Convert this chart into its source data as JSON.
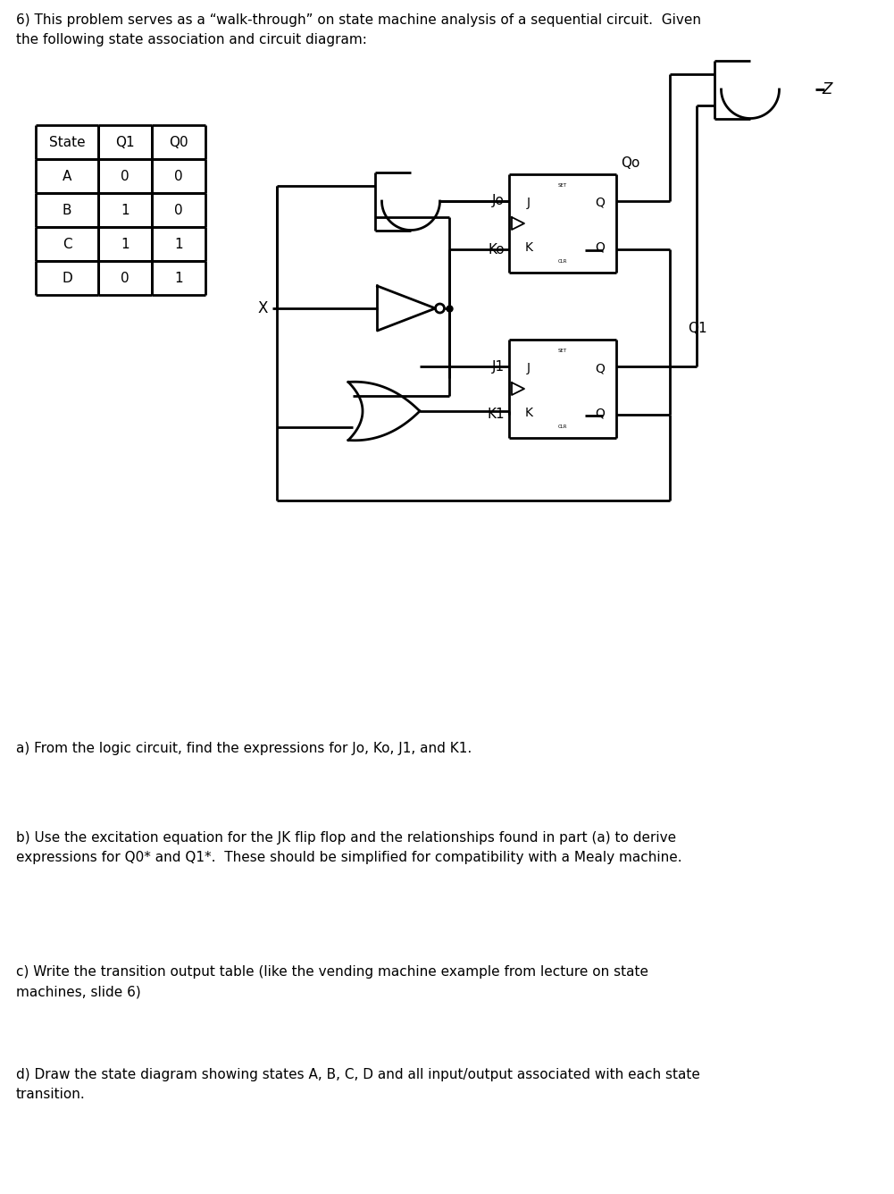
{
  "title_text": "6) This problem serves as a “walk-through” on state machine analysis of a sequential circuit.  Given\nthe following state association and circuit diagram:",
  "table_headers": [
    "State",
    "Q1",
    "Q0"
  ],
  "table_rows": [
    [
      "A",
      "0",
      "0"
    ],
    [
      "B",
      "1",
      "0"
    ],
    [
      "C",
      "1",
      "1"
    ],
    [
      "D",
      "0",
      "1"
    ]
  ],
  "question_a": "a) From the logic circuit, find the expressions for Jo, Ko, J1, and K1.",
  "question_b": "b) Use the excitation equation for the JK flip flop and the relationships found in part (a) to derive\nexpressions for Q0* and Q1*.  These should be simplified for compatibility with a Mealy machine.",
  "question_c": "c) Write the transition output table (like the vending machine example from lecture on state\nmachines, slide 6)",
  "question_d": "d) Draw the state diagram showing states A, B, C, D and all input/output associated with each state\ntransition.",
  "bg_color": "#ffffff",
  "text_color": "#000000",
  "line_color": "#000000",
  "font_size": 11
}
